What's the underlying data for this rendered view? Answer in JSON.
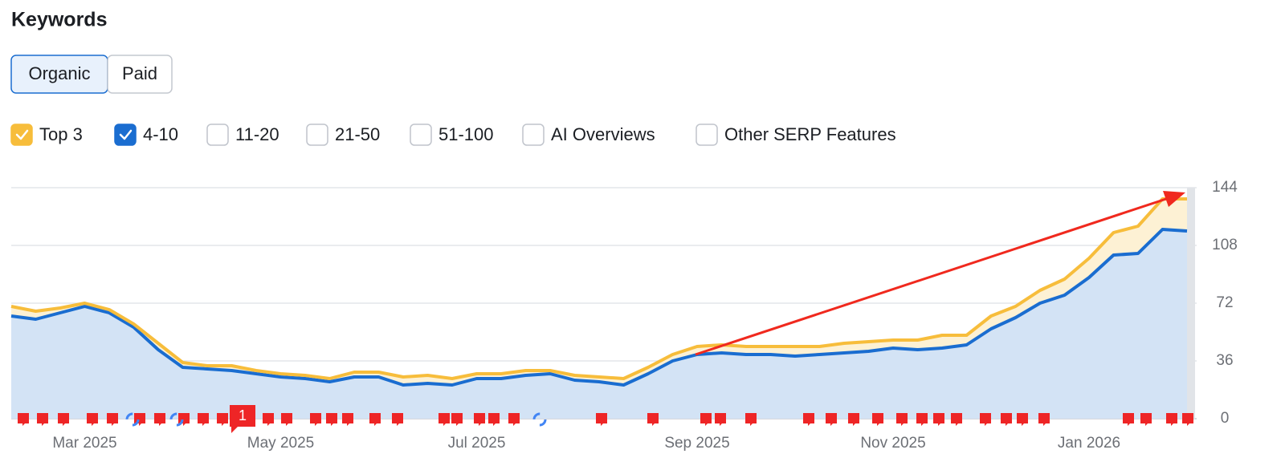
{
  "header": {
    "title": "Keywords"
  },
  "tabs": [
    {
      "label": "Organic",
      "selected": true
    },
    {
      "label": "Paid",
      "selected": false
    }
  ],
  "other_filters": [
    {
      "label": "11-20",
      "checked": false
    },
    {
      "label": "21-50",
      "checked": false
    },
    {
      "label": "51-100",
      "checked": false
    },
    {
      "label": "AI Overviews",
      "checked": false
    },
    {
      "label": "Other SERP Features",
      "checked": false
    }
  ],
  "chart_data": {
    "type": "area",
    "stacked": true,
    "categories": [
      null,
      null,
      null,
      "Mar 2025",
      null,
      null,
      null,
      null,
      null,
      null,
      null,
      "May 2025",
      null,
      null,
      null,
      null,
      null,
      null,
      null,
      "Jul 2025",
      null,
      null,
      null,
      null,
      null,
      null,
      null,
      null,
      "Sep 2025",
      null,
      null,
      null,
      null,
      null,
      null,
      null,
      "Nov 2025",
      null,
      null,
      null,
      null,
      null,
      null,
      null,
      "Jan 2026",
      null,
      null,
      null,
      null
    ],
    "series": [
      {
        "name": "4-10",
        "color": "#1a6dd0",
        "fill": "#d3e3f5",
        "checked": true,
        "values": [
          64,
          62,
          66,
          70,
          66,
          57,
          43,
          32,
          31,
          30,
          28,
          26,
          25,
          23,
          26,
          26,
          21,
          22,
          21,
          25,
          25,
          27,
          28,
          24,
          23,
          21,
          28,
          36,
          40,
          41,
          40,
          40,
          39,
          40,
          41,
          42,
          44,
          43,
          44,
          46,
          56,
          63,
          72,
          77,
          88,
          102,
          103,
          118,
          117
        ]
      },
      {
        "name": "Top 3",
        "color": "#f7bd3b",
        "fill": "#fdf1d4",
        "checked": true,
        "values": [
          6,
          5,
          3,
          2,
          2,
          2,
          4,
          3,
          2,
          3,
          2,
          2,
          2,
          2,
          3,
          3,
          5,
          5,
          4,
          3,
          3,
          3,
          2,
          3,
          3,
          4,
          4,
          4,
          5,
          5,
          5,
          5,
          6,
          5,
          6,
          6,
          5,
          6,
          8,
          6,
          8,
          7,
          8,
          10,
          12,
          14,
          17,
          19,
          20
        ]
      }
    ],
    "ylim": [
      0,
      144
    ],
    "yticks": [
      0,
      36,
      72,
      108,
      144
    ],
    "grid": true,
    "annotations": [
      {
        "text": "1"
      }
    ]
  }
}
